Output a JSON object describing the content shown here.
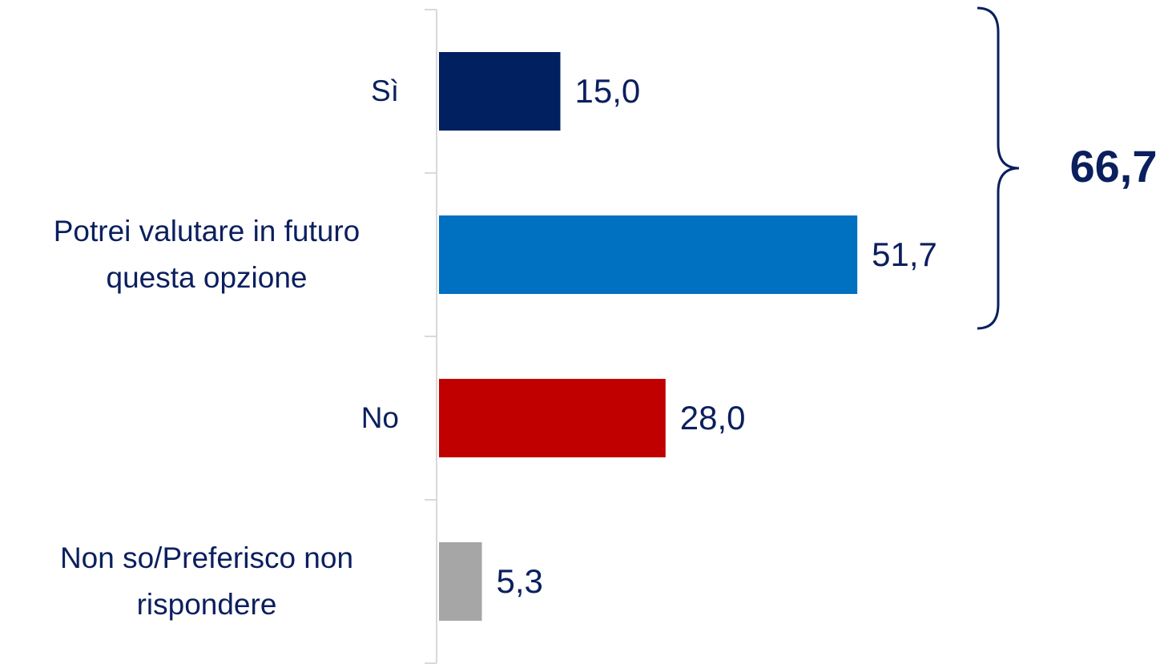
{
  "chart_data": {
    "type": "bar",
    "orientation": "horizontal",
    "categories": [
      "Sì",
      "Potrei valutare in futuro questa opzione",
      "No",
      "Non so/Preferisco non rispondere"
    ],
    "values": [
      15.0,
      51.7,
      28.0,
      5.3
    ],
    "value_labels": [
      "15,0",
      "51,7",
      "28,0",
      "5,3"
    ],
    "colors": [
      "#002060",
      "#0070c0",
      "#c00000",
      "#a6a6a6"
    ],
    "annotations": [
      {
        "text": "66,7"
      }
    ]
  }
}
